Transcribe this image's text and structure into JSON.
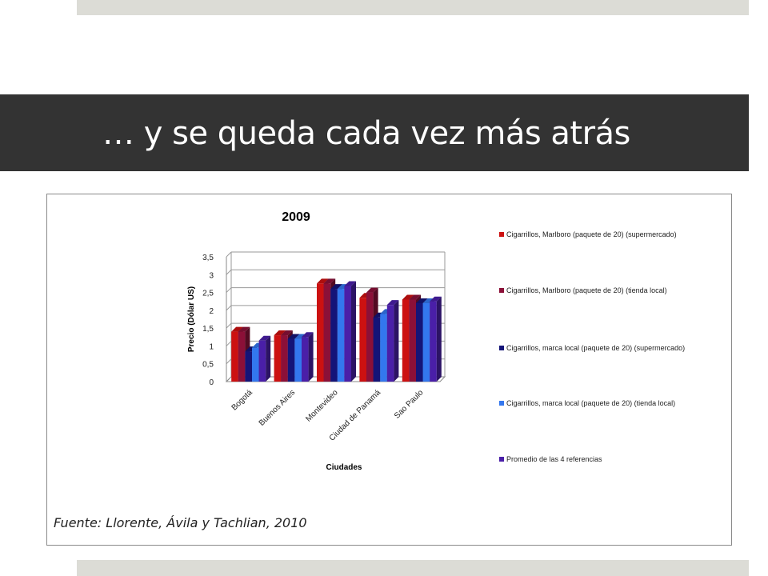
{
  "slide": {
    "title": "… y se queda cada vez más atrás",
    "source": "Fuente: Llorente, Ávila y Tachlian, 2010"
  },
  "chart_data": {
    "type": "bar",
    "title": "2009",
    "xlabel": "Ciudades",
    "ylabel": "Precio (Dólar US)",
    "ylim": [
      0,
      3.5
    ],
    "yticks": [
      "0",
      "0,5",
      "1",
      "1,5",
      "2",
      "2,5",
      "3",
      "3,5"
    ],
    "grid": true,
    "legend_position": "right",
    "categories": [
      "Bogotá",
      "Buenos Aires",
      "Montevideo",
      "Ciudad de Panamá",
      "Sao Paulo"
    ],
    "series": [
      {
        "name": "Cigarrillos, Marlboro (paquete de 20) (supermercado)",
        "color": "#cc1111",
        "values": [
          1.4,
          1.3,
          2.75,
          2.35,
          2.3
        ]
      },
      {
        "name": "Cigarrillos, Marlboro (paquete de 20) (tienda local)",
        "color": "#8b1038",
        "values": [
          1.4,
          1.3,
          2.75,
          2.5,
          2.3
        ]
      },
      {
        "name": "Cigarrillos, marca local (paquete de 20) (supermercado)",
        "color": "#141478",
        "values": [
          0.85,
          1.2,
          2.6,
          1.8,
          2.2
        ]
      },
      {
        "name": "Cigarrillos, marca local (paquete de 20) (tienda local)",
        "color": "#3377ee",
        "values": [
          0.95,
          1.2,
          2.6,
          1.9,
          2.2
        ]
      },
      {
        "name": "Promedio de las 4 referencias",
        "color": "#4a1fa8",
        "values": [
          1.15,
          1.25,
          2.68,
          2.15,
          2.25
        ]
      }
    ]
  }
}
